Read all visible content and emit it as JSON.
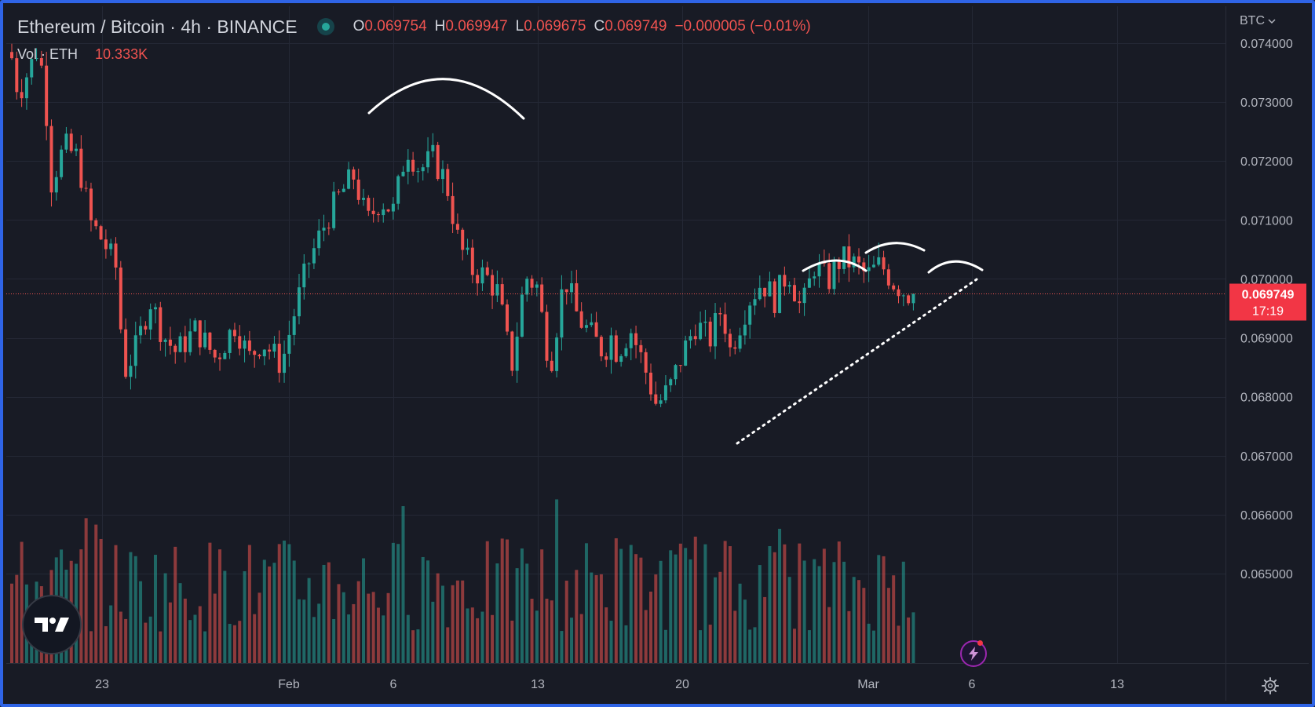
{
  "header": {
    "symbol_title": "Ethereum / Bitcoin · 4h · BINANCE",
    "ohlc": [
      {
        "label": "O",
        "value": "0.069754"
      },
      {
        "label": "H",
        "value": "0.069947"
      },
      {
        "label": "L",
        "value": "0.069675"
      },
      {
        "label": "C",
        "value": "0.069749"
      }
    ],
    "change": "−0.000005 (−0.01%)",
    "volume_label": "Vol · ETH",
    "volume_value": "10.333K"
  },
  "currency_label": "BTC",
  "colors": {
    "up": "#26a69a",
    "down": "#ef5350",
    "background": "#181b25",
    "frame": "#2f64e6",
    "text": "#d1d4dc"
  },
  "chart_data": {
    "type": "candlestick",
    "interval": "4h",
    "exchange": "BINANCE",
    "ylim": [
      0.0643,
      0.0747
    ],
    "y_ticks": [
      "0.074000",
      "0.073000",
      "0.072000",
      "0.071000",
      "0.070000",
      "0.069000",
      "0.068000",
      "0.067000",
      "0.066000",
      "0.065000"
    ],
    "x_ticks": [
      "23",
      "Feb",
      "6",
      "13",
      "20",
      "Mar",
      "6",
      "13"
    ],
    "last_price": {
      "value": 0.069749,
      "label": "0.069749",
      "countdown": "17:19"
    },
    "price_path": [
      [
        0,
        0.07375
      ],
      [
        1,
        0.07315
      ],
      [
        3,
        0.07365
      ],
      [
        4,
        0.07395
      ],
      [
        5,
        0.07325
      ],
      [
        6,
        0.07165
      ],
      [
        8,
        0.07225
      ],
      [
        10,
        0.07205
      ],
      [
        12,
        0.07095
      ],
      [
        14,
        0.07062
      ],
      [
        16,
        0.07015
      ],
      [
        17,
        0.0684
      ],
      [
        19,
        0.06885
      ],
      [
        21,
        0.06965
      ],
      [
        23,
        0.06905
      ],
      [
        25,
        0.06875
      ],
      [
        28,
        0.06915
      ],
      [
        31,
        0.06865
      ],
      [
        34,
        0.06925
      ],
      [
        36,
        0.06865
      ],
      [
        38,
        0.06895
      ],
      [
        41,
        0.06855
      ],
      [
        43,
        0.06945
      ],
      [
        45,
        0.07025
      ],
      [
        48,
        0.07105
      ],
      [
        50,
        0.07145
      ],
      [
        52,
        0.07175
      ],
      [
        54,
        0.07095
      ],
      [
        56,
        0.07135
      ],
      [
        58,
        0.07115
      ],
      [
        60,
        0.07225
      ],
      [
        62,
        0.07185
      ],
      [
        64,
        0.07205
      ],
      [
        66,
        0.07165
      ],
      [
        68,
        0.07055
      ],
      [
        70,
        0.07015
      ],
      [
        72,
        0.07005
      ],
      [
        74,
        0.06975
      ],
      [
        75,
        0.06905
      ],
      [
        76,
        0.06855
      ],
      [
        77,
        0.06925
      ],
      [
        78,
        0.07005
      ],
      [
        80,
        0.06985
      ],
      [
        81,
        0.06895
      ],
      [
        82,
        0.06865
      ],
      [
        84,
        0.07005
      ],
      [
        86,
        0.06935
      ],
      [
        88,
        0.06905
      ],
      [
        90,
        0.06875
      ],
      [
        91,
        0.06905
      ],
      [
        92,
        0.06875
      ],
      [
        94,
        0.06915
      ],
      [
        96,
        0.06855
      ],
      [
        98,
        0.06785
      ],
      [
        100,
        0.06815
      ],
      [
        102,
        0.06875
      ],
      [
        104,
        0.06925
      ],
      [
        106,
        0.06895
      ],
      [
        108,
        0.06955
      ],
      [
        109,
        0.06875
      ],
      [
        110,
        0.06905
      ],
      [
        112,
        0.06965
      ],
      [
        114,
        0.06995
      ],
      [
        116,
        0.06965
      ],
      [
        118,
        0.07015
      ],
      [
        120,
        0.06945
      ],
      [
        122,
        0.07025
      ],
      [
        124,
        0.06995
      ],
      [
        126,
        0.07035
      ],
      [
        128,
        0.07025
      ],
      [
        130,
        0.07005
      ],
      [
        132,
        0.07025
      ],
      [
        134,
        0.06995
      ],
      [
        136,
        0.06975
      ]
    ],
    "candles_total": 176,
    "volume": {
      "unit": "ETH",
      "last": "10.333K"
    },
    "annotations": [
      {
        "type": "arc",
        "label": "peak 1"
      },
      {
        "type": "arc",
        "label": "peak 2"
      },
      {
        "type": "arc",
        "label": "peak 3"
      },
      {
        "type": "arc",
        "label": "peak 4"
      },
      {
        "type": "dotted-trendline",
        "from": [
          0.3,
          0.0676
        ],
        "to": [
          0.0,
          0.0702
        ]
      }
    ]
  }
}
